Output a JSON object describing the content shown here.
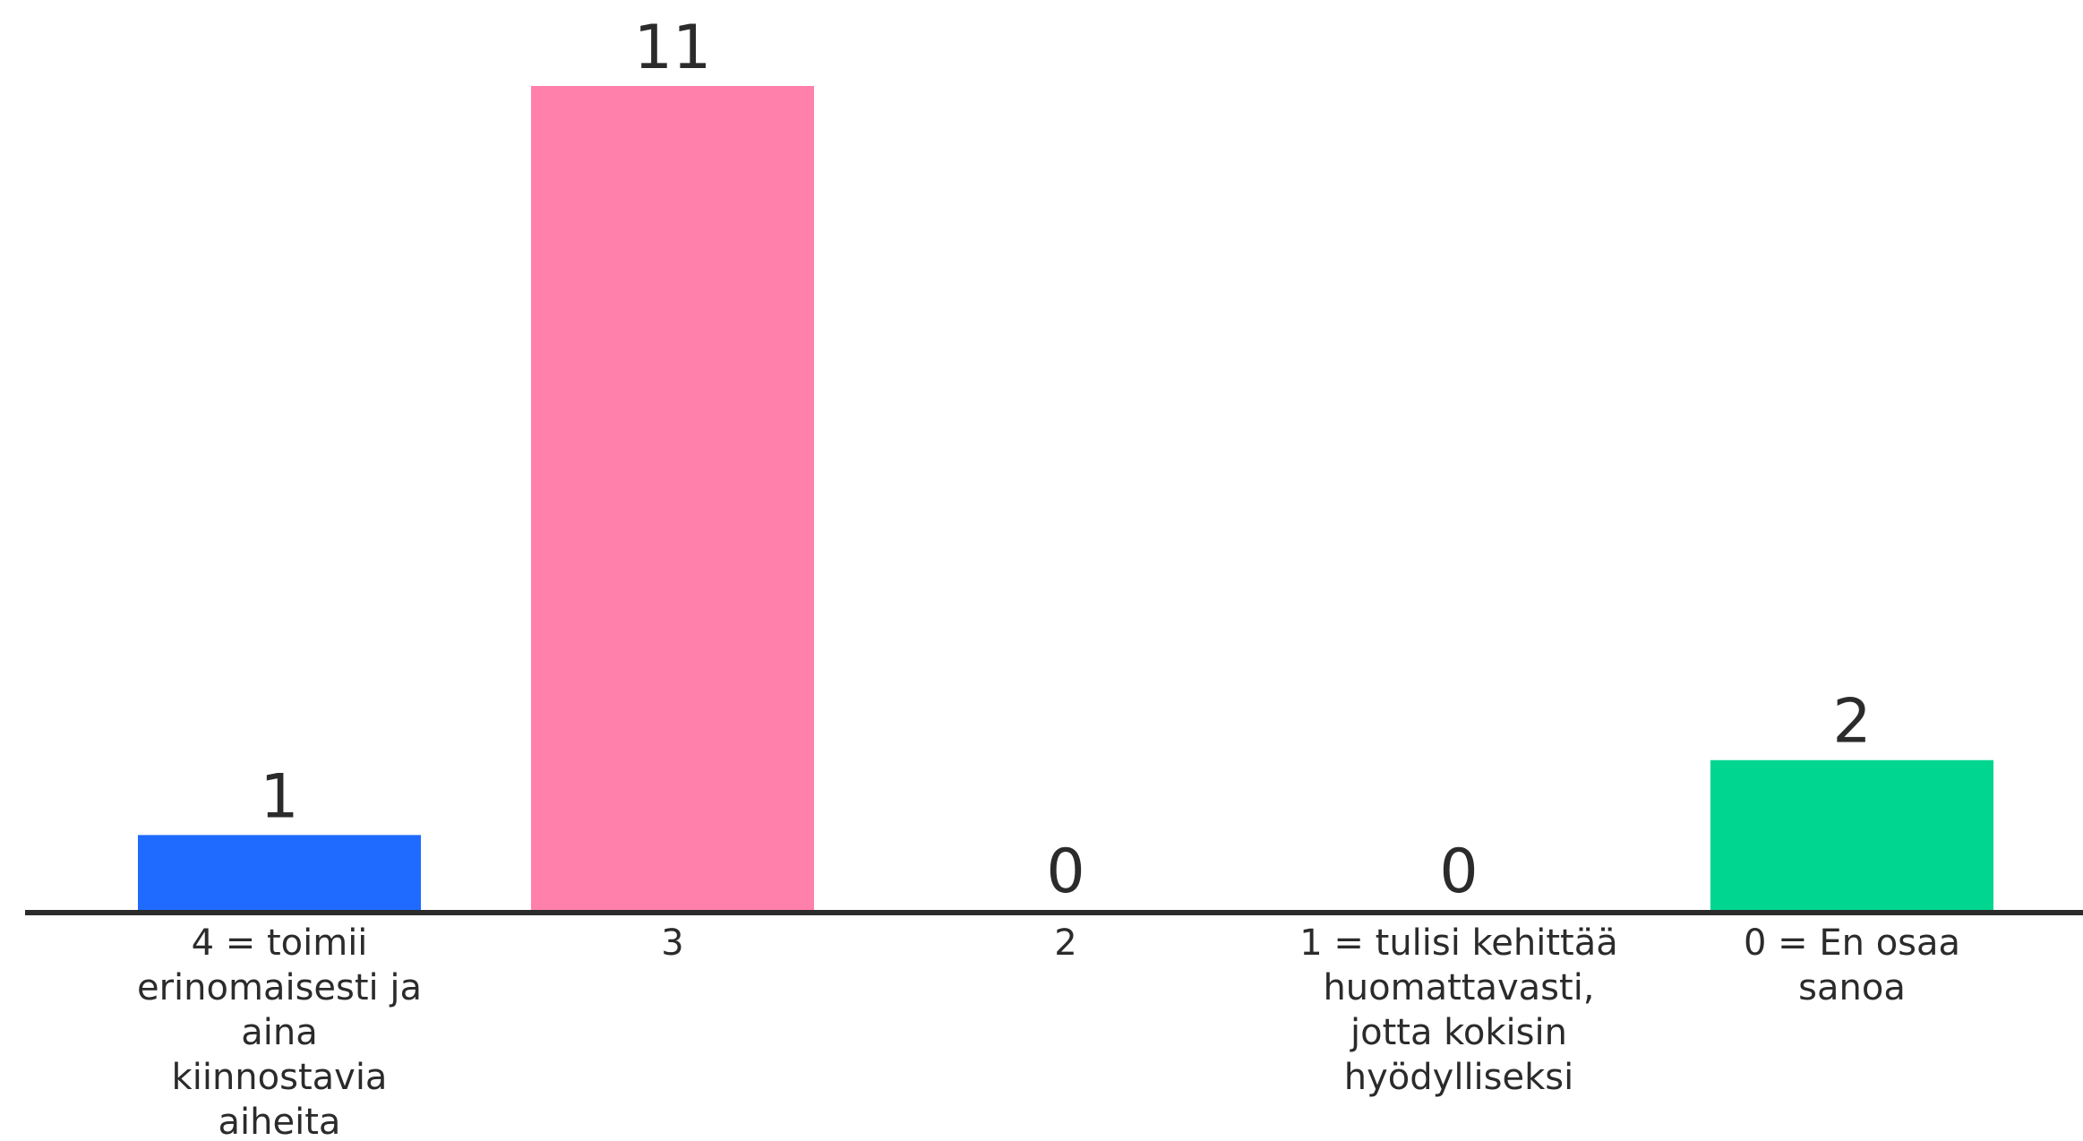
{
  "chart_data": {
    "type": "bar",
    "categories": [
      "4 = toimii erinomaisesti ja aina kiinnostavia aiheita",
      "3",
      "2",
      "1 = tulisi kehittää huomattavasti, jotta kokisin hyödylliseksi",
      "0 = En osaa sanoa"
    ],
    "category_lines": [
      [
        "4 = toimii",
        "erinomaisesti ja",
        "aina",
        "kiinnostavia",
        "aiheita"
      ],
      [
        "3"
      ],
      [
        "2"
      ],
      [
        "1 = tulisi kehittää",
        "huomattavasti,",
        "jotta kokisin",
        "hyödylliseksi"
      ],
      [
        "0 = En osaa",
        "sanoa"
      ]
    ],
    "values": [
      1,
      11,
      0,
      0,
      2
    ],
    "value_labels": [
      "1",
      "11",
      "0",
      "0",
      "2"
    ],
    "colors": [
      "#1f6bff",
      "#ff80aa",
      "#cccccc",
      "#cccccc",
      "#00d68f"
    ],
    "title": "",
    "xlabel": "",
    "ylabel": "",
    "ylim": [
      0,
      11
    ],
    "grid": false,
    "legend": "none"
  }
}
